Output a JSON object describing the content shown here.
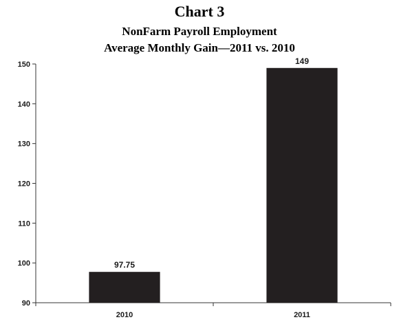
{
  "chart_data": {
    "type": "bar",
    "title": "Chart 3",
    "subtitle_lines": [
      "NonFarm Payroll Employment",
      "Average Monthly Gain—2011 vs. 2010"
    ],
    "categories": [
      "2010",
      "2011"
    ],
    "values": [
      97.75,
      149
    ],
    "data_labels": [
      "97.75",
      "149"
    ],
    "ylim": [
      90,
      150
    ],
    "yticks": [
      90,
      100,
      110,
      120,
      130,
      140,
      150
    ],
    "xlabel": "",
    "ylabel": "",
    "grid": false,
    "legend": "none",
    "bar_color": "#231f20"
  }
}
